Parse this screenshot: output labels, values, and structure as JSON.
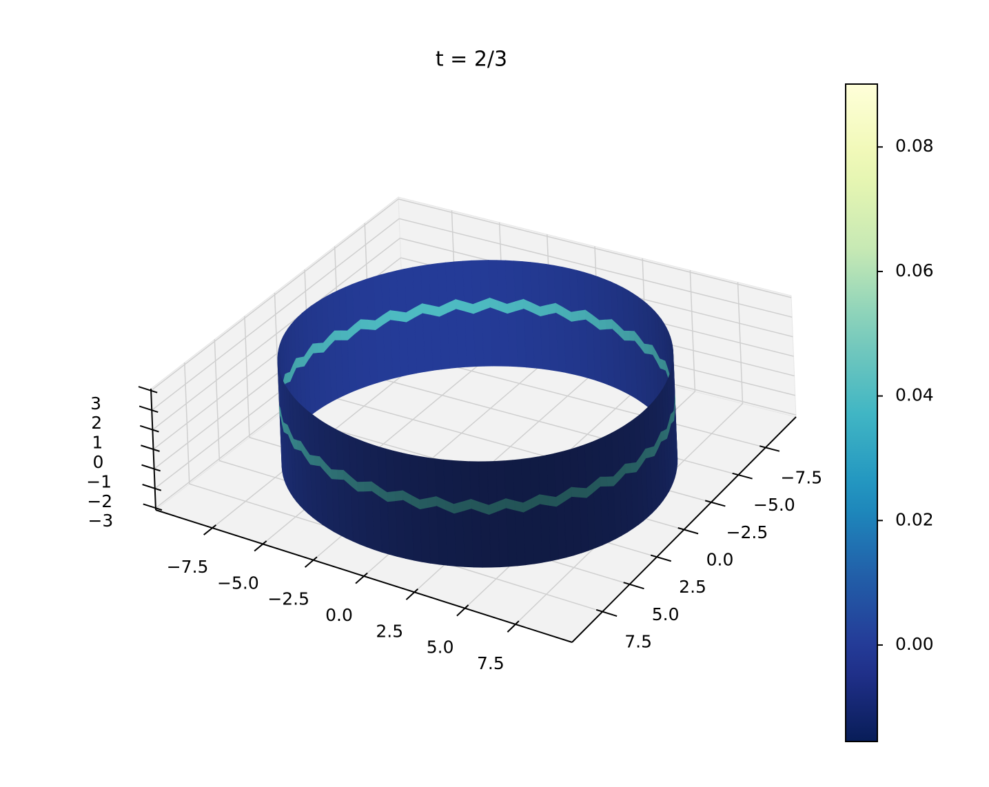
{
  "chart_data": {
    "type": "surface",
    "title": "t = 2/3",
    "xlim": [
      -10.3,
      10.3
    ],
    "ylim": [
      -10.3,
      10.3
    ],
    "zlim": [
      -3.1,
      3.1
    ],
    "xticks": [
      {
        "value": -7.5,
        "label": "−7.5"
      },
      {
        "value": -5,
        "label": "−5.0"
      },
      {
        "value": -2.5,
        "label": "−2.5"
      },
      {
        "value": 0,
        "label": "0.0"
      },
      2.5,
      {
        "value": 5,
        "label": "5.0"
      },
      7.5
    ],
    "yticks": [
      {
        "value": -7.5,
        "label": "−7.5"
      },
      {
        "value": -5,
        "label": "−5.0"
      },
      {
        "value": -2.5,
        "label": "−2.5"
      },
      {
        "value": 0,
        "label": "0.0"
      },
      2.5,
      {
        "value": 5,
        "label": "5.0"
      },
      7.5
    ],
    "zticks": [
      {
        "value": -3,
        "label": "−3"
      },
      {
        "value": -2,
        "label": "−2"
      },
      {
        "value": -1,
        "label": "−1"
      },
      0,
      1,
      2,
      3
    ],
    "grid": true,
    "pane_color": "#f2f2f2",
    "surface": {
      "radius": 8.7,
      "z_range": [
        -2.7,
        2.7
      ],
      "value": 0,
      "band": {
        "z": 0.4,
        "width": 0.5,
        "value": 0.04
      }
    },
    "colorbar": {
      "colormap": "YlGnBu_r",
      "clim": [
        -0.0155,
        0.0901
      ],
      "ticks": [
        {
          "value": 0,
          "label": "0.00"
        },
        0.02,
        0.04,
        0.06,
        0.08
      ]
    }
  }
}
